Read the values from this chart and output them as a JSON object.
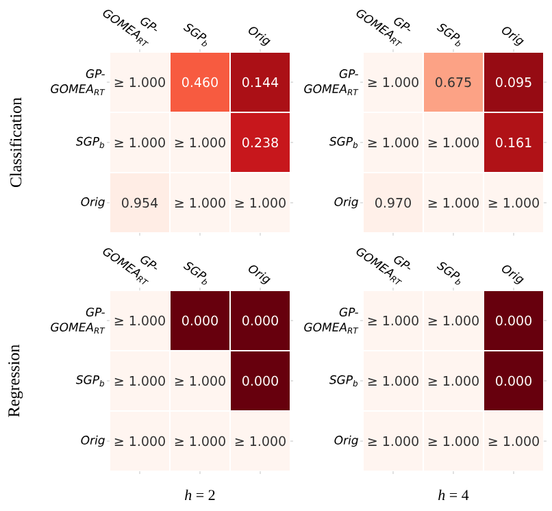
{
  "chart_data": [
    {
      "type": "heatmap",
      "ylabel": "Classification",
      "categories": [
        "GP-GOMEA$_{RT}$",
        "SGP$_{b}$",
        "Orig"
      ],
      "y_categories": [
        "GP-GOMEA$_{RT}$",
        "SGP$_{b}$",
        "Orig"
      ],
      "cells": [
        [
          null,
          0.46,
          0.144
        ],
        [
          null,
          null,
          0.238
        ],
        [
          0.954,
          null,
          null
        ]
      ],
      "cell_labels": [
        [
          "≥ 1.000",
          "0.460",
          "0.144"
        ],
        [
          "≥ 1.000",
          "≥ 1.000",
          "0.238"
        ],
        [
          "0.954",
          "≥ 1.000",
          "≥ 1.000"
        ]
      ]
    },
    {
      "type": "heatmap",
      "categories": [
        "GP-GOMEA$_{RT}$",
        "SGP$_{b}$",
        "Orig"
      ],
      "y_categories": [
        "GP-GOMEA$_{RT}$",
        "SGP$_{b}$",
        "Orig"
      ],
      "cells": [
        [
          null,
          0.675,
          0.095
        ],
        [
          null,
          null,
          0.161
        ],
        [
          0.97,
          null,
          null
        ]
      ],
      "cell_labels": [
        [
          "≥ 1.000",
          "0.675",
          "0.095"
        ],
        [
          "≥ 1.000",
          "≥ 1.000",
          "0.161"
        ],
        [
          "0.970",
          "≥ 1.000",
          "≥ 1.000"
        ]
      ]
    },
    {
      "type": "heatmap",
      "ylabel": "Regression",
      "xlabel": "*h* = 2",
      "categories": [
        "GP-GOMEA$_{RT}$",
        "SGP$_{b}$",
        "Orig"
      ],
      "y_categories": [
        "GP-GOMEA$_{RT}$",
        "SGP$_{b}$",
        "Orig"
      ],
      "cells": [
        [
          null,
          0.0,
          0.0
        ],
        [
          null,
          null,
          0.0
        ],
        [
          null,
          null,
          null
        ]
      ],
      "cell_labels": [
        [
          "≥ 1.000",
          "0.000",
          "0.000"
        ],
        [
          "≥ 1.000",
          "≥ 1.000",
          "0.000"
        ],
        [
          "≥ 1.000",
          "≥ 1.000",
          "≥ 1.000"
        ]
      ]
    },
    {
      "type": "heatmap",
      "xlabel": "*h* = 4",
      "categories": [
        "GP-GOMEA$_{RT}$",
        "SGP$_{b}$",
        "Orig"
      ],
      "y_categories": [
        "GP-GOMEA$_{RT}$",
        "SGP$_{b}$",
        "Orig"
      ],
      "cells": [
        [
          null,
          null,
          0.0
        ],
        [
          null,
          null,
          0.0
        ],
        [
          null,
          null,
          null
        ]
      ],
      "cell_labels": [
        [
          "≥ 1.000",
          "≥ 1.000",
          "0.000"
        ],
        [
          "≥ 1.000",
          "≥ 1.000",
          "0.000"
        ],
        [
          "≥ 1.000",
          "≥ 1.000",
          "≥ 1.000"
        ]
      ]
    }
  ]
}
